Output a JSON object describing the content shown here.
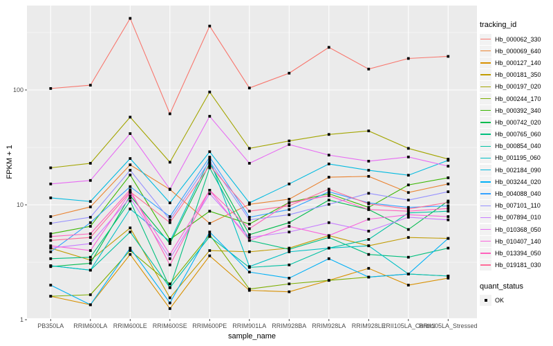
{
  "legend": {
    "tracking_id_title": "tracking_id",
    "quant_status_title": "quant_status",
    "quant_status_entries": [
      {
        "label": "OK",
        "marker": "black-square"
      }
    ]
  },
  "theme": {
    "page_bg": "#FFFFFF",
    "panel_bg": "#EBEBEB",
    "grid_color": "#FFFFFF",
    "tick_label_color": "#4D4D4D",
    "tick_mark_color": "#333333",
    "point_color": "#000000",
    "legend_key_bg": "#F2F2F2"
  },
  "chart_data": {
    "type": "line",
    "title": "",
    "xlabel": "sample_name",
    "ylabel": "FPKM + 1",
    "y_scale": "log10",
    "ylim": [
      1,
      540
    ],
    "y_major_ticks": [
      1,
      10,
      100
    ],
    "y_major_tick_labels": [
      "1",
      "10",
      "100"
    ],
    "y_minor_ticks": [
      3.162,
      31.623,
      316.228
    ],
    "grid": "on",
    "legend_position": "right",
    "point_marker": "filled-black-square",
    "categories": [
      "PB350LA",
      "RRIM600LA",
      "RRIM600LE",
      "RRIM600SE",
      "RRIM600PE",
      "RRIM901LA",
      "RRIM928BA",
      "RRIM928LA",
      "RRIM928LE",
      "RRII105LA_Control",
      "RRII105LA_Stressed"
    ],
    "series": [
      {
        "name": "Hb_000062_330",
        "color": "#F8766D",
        "values": [
          103,
          110,
          420,
          62,
          360,
          104,
          140,
          235,
          152,
          188,
          196
        ]
      },
      {
        "name": "Hb_000069_640",
        "color": "#EA8331",
        "values": [
          7.9,
          9.6,
          22.3,
          13.6,
          6.9,
          10.1,
          11.2,
          17.4,
          17.7,
          12.8,
          15.2
        ]
      },
      {
        "name": "Hb_000127_140",
        "color": "#D89000",
        "values": [
          1.6,
          1.35,
          3.7,
          1.25,
          3.6,
          1.8,
          1.75,
          2.2,
          2.8,
          2.0,
          2.3
        ]
      },
      {
        "name": "Hb_000181_350",
        "color": "#C09B00",
        "values": [
          4.2,
          3.3,
          6.3,
          1.55,
          4.0,
          3.9,
          4.2,
          5.4,
          4.4,
          5.2,
          5.1
        ]
      },
      {
        "name": "Hb_000197_020",
        "color": "#A3A500",
        "values": [
          21,
          23,
          58,
          23.5,
          96,
          31,
          36,
          41,
          44,
          31,
          25
        ]
      },
      {
        "name": "Hb_000244_170",
        "color": "#7CAE00",
        "values": [
          1.6,
          1.65,
          4.0,
          2.05,
          5.5,
          1.85,
          2.05,
          2.2,
          2.35,
          2.5,
          2.4
        ]
      },
      {
        "name": "Hb_000392_340",
        "color": "#39B600",
        "values": [
          5.6,
          6.5,
          18.2,
          5.0,
          8.8,
          6.8,
          10.5,
          12.5,
          9.5,
          14.9,
          17.2
        ]
      },
      {
        "name": "Hb_000742_020",
        "color": "#00BB4E",
        "values": [
          2.9,
          3.1,
          12.0,
          4.6,
          23,
          5.5,
          7.0,
          11.0,
          9.1,
          6.1,
          10.8
        ]
      },
      {
        "name": "Hb_000765_060",
        "color": "#00BF7D",
        "values": [
          3.4,
          3.5,
          10.8,
          1.9,
          21,
          4.9,
          4.1,
          5.2,
          3.7,
          3.5,
          4.2
        ]
      },
      {
        "name": "Hb_000854_040",
        "color": "#00C1A3",
        "values": [
          2.95,
          2.7,
          5.8,
          1.9,
          5.3,
          2.85,
          3.0,
          4.2,
          5.0,
          8.5,
          8.8
        ]
      },
      {
        "name": "Hb_001195_060",
        "color": "#00BFC4",
        "values": [
          2.95,
          2.7,
          9.2,
          4.8,
          25,
          2.9,
          3.9,
          4.2,
          4.4,
          2.5,
          2.4
        ]
      },
      {
        "name": "Hb_002184_090",
        "color": "#00BAE0",
        "values": [
          11.5,
          10.7,
          25.3,
          10.4,
          29,
          10.4,
          15.2,
          22.7,
          20,
          18.1,
          24.4
        ]
      },
      {
        "name": "Hb_003244_020",
        "color": "#00B0F6",
        "values": [
          2.0,
          1.35,
          4.2,
          1.4,
          5.8,
          2.6,
          2.3,
          3.4,
          2.35,
          2.5,
          5.1
        ]
      },
      {
        "name": "Hb_004088_040",
        "color": "#35A2FF",
        "values": [
          3.9,
          7.0,
          14.4,
          7.9,
          26,
          7.8,
          9.1,
          13.0,
          10.4,
          9.5,
          9.8
        ]
      },
      {
        "name": "Hb_007101_110",
        "color": "#9590FF",
        "values": [
          6.9,
          7.8,
          20,
          7.4,
          24,
          7.4,
          8.2,
          10.1,
          12.6,
          11.0,
          13.0
        ]
      },
      {
        "name": "Hb_007894_010",
        "color": "#C77CFF",
        "values": [
          4.2,
          4.6,
          11.5,
          3.4,
          12.5,
          5.2,
          5.8,
          7.0,
          5.9,
          7.8,
          7.4
        ]
      },
      {
        "name": "Hb_010368_050",
        "color": "#E76BF3",
        "values": [
          15.2,
          16.3,
          41.7,
          13.7,
          59,
          23,
          33.5,
          27.1,
          24,
          26.1,
          21.7
        ]
      },
      {
        "name": "Hb_010407_140",
        "color": "#FA62DB",
        "values": [
          4.4,
          4.0,
          12.8,
          3.7,
          13.4,
          4.9,
          6.5,
          5.4,
          7.5,
          8.2,
          7.9
        ]
      },
      {
        "name": "Hb_013394_050",
        "color": "#FF62BC",
        "values": [
          5.3,
          5.6,
          13.5,
          3.0,
          13.4,
          6.2,
          10.4,
          12.0,
          9.1,
          8.8,
          9.3
        ]
      },
      {
        "name": "Hb_019181_030",
        "color": "#FF6A98",
        "values": [
          4.9,
          5.2,
          13.0,
          7.0,
          22,
          8.8,
          9.8,
          13.7,
          10.2,
          9.2,
          10.5
        ]
      }
    ]
  }
}
